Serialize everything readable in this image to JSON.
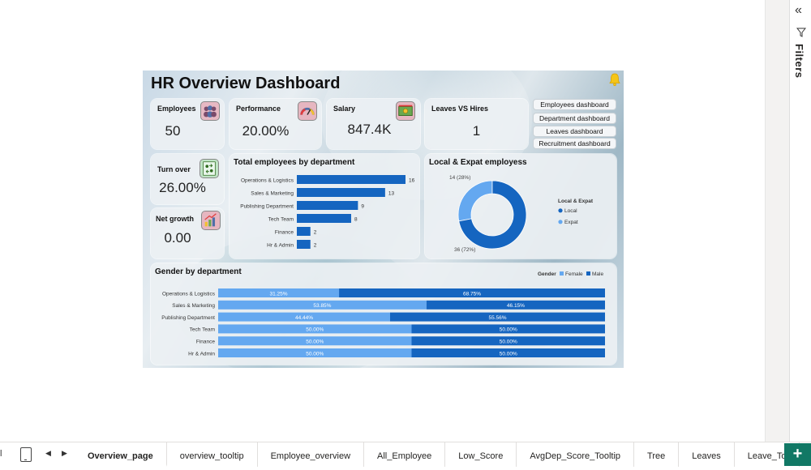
{
  "report": {
    "title": "HR Overview Dashboard",
    "kpis": [
      {
        "label": "Employees",
        "value": "50",
        "icon": "people-icon"
      },
      {
        "label": "Performance",
        "value": "20.00%",
        "icon": "gauge-icon"
      },
      {
        "label": "Salary",
        "value": "847.4K",
        "icon": "money-icon"
      },
      {
        "label": "Leaves VS Hires",
        "value": "1"
      },
      {
        "label": "Turn over",
        "value": "26.00%",
        "icon": "swap-icon"
      },
      {
        "label": "Net growth",
        "value": "0.00",
        "icon": "growth-icon"
      }
    ],
    "nav_buttons": [
      "Employees dashboard",
      "Department dashboard",
      "Leaves dashboard",
      "Recruitment dashboard"
    ]
  },
  "filters": {
    "label": "Filters"
  },
  "tabs": {
    "left_edge": "l",
    "items": [
      "Overview_page",
      "overview_tooltip",
      "Employee_overview",
      "All_Employee",
      "Low_Score",
      "AvgDep_Score_Tooltip",
      "Tree",
      "Leaves",
      "Leave_To"
    ],
    "add_label": "+"
  },
  "colors": {
    "dark_blue": "#1565c0",
    "light_blue": "#64a8f0",
    "active_tab_underline": "#117865"
  },
  "chart_data": [
    {
      "type": "bar",
      "orientation": "horizontal",
      "title": "Total employees by department",
      "categories": [
        "Operations & Logistics",
        "Sales & Marketing",
        "Publishing Department",
        "Tech Team",
        "Finance",
        "Hr & Admin"
      ],
      "values": [
        16,
        13,
        9,
        8,
        2,
        2
      ],
      "data_labels": [
        "16",
        "13",
        "9",
        "8",
        "2",
        "2"
      ]
    },
    {
      "type": "pie",
      "donut": true,
      "title": "Local & Expat employess",
      "legend_title": "Local & Expat",
      "legend_position": "right",
      "series": [
        {
          "name": "Local",
          "value": 36,
          "label": "36 (72%)"
        },
        {
          "name": "Expat",
          "value": 14,
          "label": "14 (28%)"
        }
      ]
    },
    {
      "type": "bar",
      "orientation": "horizontal",
      "stacked": "100%",
      "title": "Gender by department",
      "legend_title": "Gender",
      "legend_position": "top-right",
      "categories": [
        "Operations & Logistics",
        "Sales & Marketing",
        "Publishing Department",
        "Tech Team",
        "Finance",
        "Hr & Admin"
      ],
      "series": [
        {
          "name": "Female",
          "values": [
            31.25,
            53.85,
            44.44,
            50.0,
            50.0,
            50.0
          ],
          "labels": [
            "31.25%",
            "53.85%",
            "44.44%",
            "50.00%",
            "50.00%",
            "50.00%"
          ]
        },
        {
          "name": "Male",
          "values": [
            68.75,
            46.15,
            55.56,
            50.0,
            50.0,
            50.0
          ],
          "labels": [
            "68.75%",
            "46.15%",
            "55.56%",
            "50.00%",
            "50.00%",
            "50.00%"
          ]
        }
      ]
    }
  ]
}
